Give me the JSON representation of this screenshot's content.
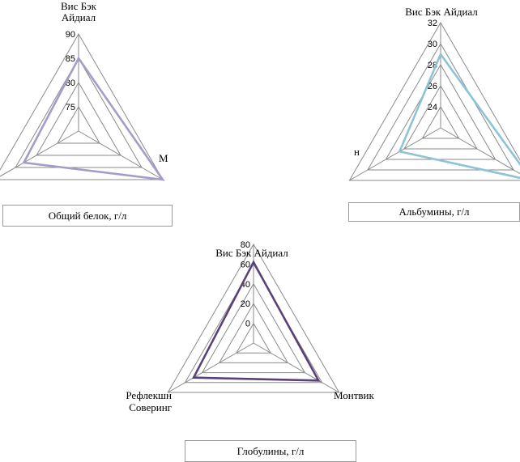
{
  "chart_data": [
    {
      "type": "radar",
      "categories": [
        "Вис Бэк Айдиал",
        "М…",
        ""
      ],
      "category_lines": [
        [
          "Вис Бэк",
          "Айдиал"
        ],
        [
          "М"
        ],
        []
      ],
      "ticks": [
        "75",
        "80",
        "85",
        "90"
      ],
      "rmin": 70,
      "rmax": 90,
      "series": [
        {
          "values": [
            85,
            90,
            83
          ],
          "color": "#a79bc8"
        }
      ],
      "legend_label": "Общий белок, г/л"
    },
    {
      "type": "radar",
      "categories": [
        "Вис Бэк Айдиал",
        "",
        "н"
      ],
      "category_lines": [
        [
          "Вис Бэк Айдиал"
        ],
        [],
        [
          "н"
        ]
      ],
      "ticks": [
        "24",
        "26",
        "28",
        "30",
        "32"
      ],
      "rmin": 22,
      "rmax": 32,
      "series": [
        {
          "values": [
            29,
            32,
            26.5
          ],
          "color": "#8cc3d8"
        }
      ],
      "legend_label": "Альбумины, г/л"
    },
    {
      "type": "radar",
      "categories": [
        "Вис Бэк Айдиал",
        "Монтвик",
        "Рефлекшн Соверинг"
      ],
      "category_lines": [
        [
          "Вис Бэк Айдиал"
        ],
        [
          "Монтвик"
        ],
        [
          "Рефлекшн",
          "Соверинг"
        ]
      ],
      "ticks": [
        "0",
        "20",
        "40",
        "60",
        "80"
      ],
      "rmin": -20,
      "rmax": 80,
      "series": [
        {
          "values": [
            62,
            56,
            50
          ],
          "color": "#5a4279"
        }
      ],
      "legend_label": "Глобулины, г/л"
    }
  ]
}
